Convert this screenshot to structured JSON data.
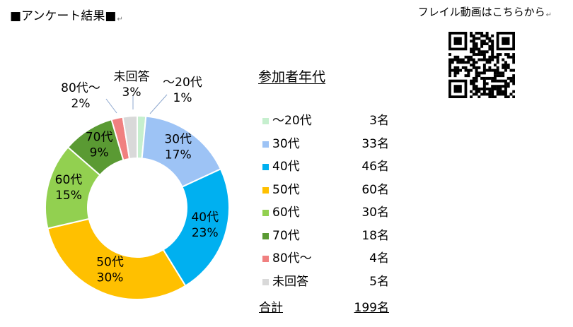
{
  "header": {
    "title": "■アンケート結果■",
    "return_mark": "↵"
  },
  "qr": {
    "caption": "フレイル動画はこちらから",
    "return_mark": "↵"
  },
  "chart_data": {
    "type": "pie",
    "title": "参加者年代",
    "categories": [
      "～20代",
      "30代",
      "40代",
      "50代",
      "60代",
      "70代",
      "80代～",
      "未回答"
    ],
    "values": [
      3,
      33,
      46,
      60,
      30,
      18,
      4,
      5
    ],
    "percent_labels": [
      "1%",
      "17%",
      "23%",
      "30%",
      "15%",
      "9%",
      "2%",
      "3%"
    ],
    "colors": [
      "#c6efce",
      "#9dc3f5",
      "#00b0f0",
      "#ffc000",
      "#92d050",
      "#5a9a33",
      "#f08080",
      "#d9d9d9"
    ],
    "legend": {
      "rows": [
        {
          "label": "～20代",
          "count": "3名"
        },
        {
          "label": "30代",
          "count": "33名"
        },
        {
          "label": "40代",
          "count": "46名"
        },
        {
          "label": "50代",
          "count": "60名"
        },
        {
          "label": "60代",
          "count": "30名"
        },
        {
          "label": "70代",
          "count": "18名"
        },
        {
          "label": "80代～",
          "count": "4名"
        },
        {
          "label": "未回答",
          "count": "5名"
        }
      ],
      "total_label": "合計",
      "total_value": "199名"
    }
  }
}
